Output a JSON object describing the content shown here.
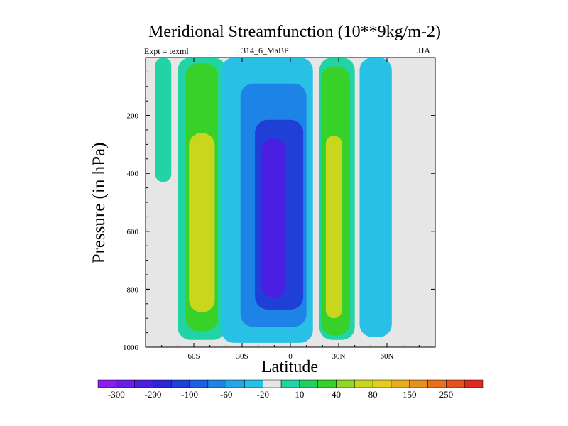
{
  "chart_data": {
    "type": "contour",
    "title": "Meridional Streamfunction (10**9kg/m-2)",
    "subtitle_left": "Expt = texml",
    "subtitle_center": "314_6_MaBP",
    "subtitle_right": "JJA",
    "xlabel": "Latitude",
    "ylabel": "Pressure (in hPa)",
    "xlim": [
      -90,
      90
    ],
    "ylim": [
      1000,
      0
    ],
    "x_ticks": [
      {
        "value": -60,
        "label": "60S"
      },
      {
        "value": -30,
        "label": "30S"
      },
      {
        "value": 0,
        "label": "0"
      },
      {
        "value": 30,
        "label": "30N"
      },
      {
        "value": 60,
        "label": "60N"
      }
    ],
    "y_ticks": [
      {
        "value": 200,
        "label": "200"
      },
      {
        "value": 400,
        "label": "400"
      },
      {
        "value": 600,
        "label": "600"
      },
      {
        "value": 800,
        "label": "800"
      },
      {
        "value": 1000,
        "label": "1000"
      }
    ],
    "colorbar": {
      "colors": [
        "#8c1eeb",
        "#6a1ee8",
        "#4a1fe2",
        "#2a26d9",
        "#1f3fd6",
        "#1c5fe3",
        "#1e83e6",
        "#25a6e6",
        "#29c0e6",
        "#e6e6e6",
        "#22d3a6",
        "#22d060",
        "#37d12a",
        "#8fd626",
        "#c8d61e",
        "#e6cc1e",
        "#e6ae1e",
        "#e6901e",
        "#e6701e",
        "#e4501e",
        "#e02a1c"
      ],
      "label_values": [
        "-300",
        "-200",
        "-100",
        "-60",
        "-20",
        "10",
        "40",
        "80",
        "150",
        "250"
      ]
    },
    "cell_contours": [
      {
        "name": "sh-polar-positive",
        "level": 10,
        "lat": [
          -84,
          -74
        ],
        "p": [
          0,
          430
        ]
      },
      {
        "name": "sh-ferrel-positive",
        "level": 10,
        "lat": [
          -70,
          -40
        ],
        "p": [
          0,
          975
        ]
      },
      {
        "name": "sh-ferrel-core",
        "level": 40,
        "lat": [
          -65,
          -45
        ],
        "p": [
          20,
          945
        ]
      },
      {
        "name": "sh-ferrel-max",
        "level": 80,
        "lat": [
          -63,
          -47
        ],
        "p": [
          260,
          880
        ]
      },
      {
        "name": "hadley-negative",
        "level": -20,
        "lat": [
          -43,
          14
        ],
        "p": [
          0,
          985
        ]
      },
      {
        "name": "hadley-core-60",
        "level": -60,
        "lat": [
          -31,
          10
        ],
        "p": [
          90,
          930
        ]
      },
      {
        "name": "hadley-core-100",
        "level": -100,
        "lat": [
          -22,
          8
        ],
        "p": [
          215,
          870
        ]
      },
      {
        "name": "hadley-max",
        "level": -200,
        "lat": [
          -18,
          -3
        ],
        "p": [
          280,
          830
        ]
      },
      {
        "name": "nh-ferrel-positive",
        "level": 10,
        "lat": [
          18,
          40
        ],
        "p": [
          0,
          975
        ]
      },
      {
        "name": "nh-ferrel-core",
        "level": 40,
        "lat": [
          19,
          37
        ],
        "p": [
          30,
          960
        ]
      },
      {
        "name": "nh-ferrel-max",
        "level": 80,
        "lat": [
          22,
          32
        ],
        "p": [
          270,
          900
        ]
      },
      {
        "name": "nh-polar-negative",
        "level": -20,
        "lat": [
          43,
          63
        ],
        "p": [
          0,
          965
        ]
      }
    ]
  }
}
